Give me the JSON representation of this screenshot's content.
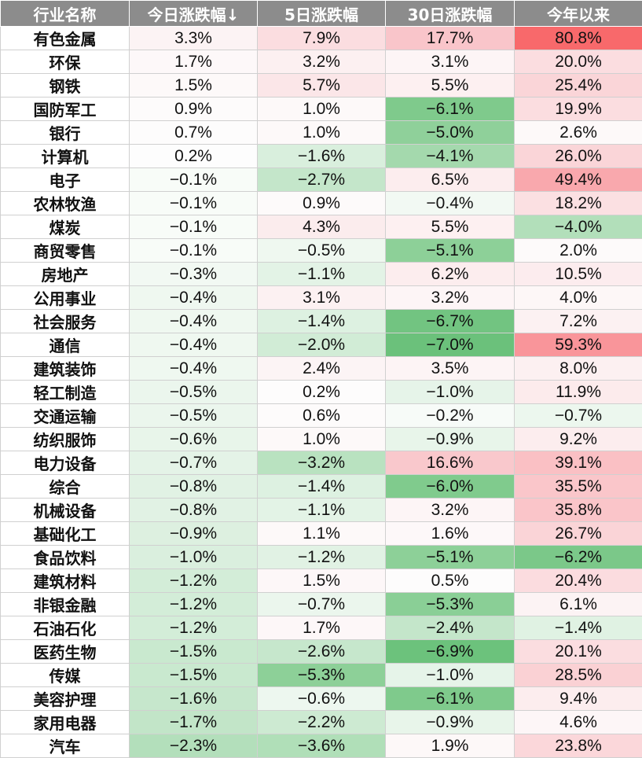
{
  "table": {
    "headers": [
      "行业名称",
      "今日涨跌幅↓",
      "5日涨跌幅",
      "30日涨跌幅",
      "今年以来"
    ],
    "rows": [
      {
        "name": "有色金属",
        "cells": [
          {
            "v": "3.3%",
            "bg": "#fcf3f4"
          },
          {
            "v": "7.9%",
            "bg": "#fbdde0"
          },
          {
            "v": "17.7%",
            "bg": "#f9c5ca"
          },
          {
            "v": "80.8%",
            "bg": "#f8696b"
          }
        ]
      },
      {
        "name": "环保",
        "cells": [
          {
            "v": "1.7%",
            "bg": "#fdf8f9"
          },
          {
            "v": "3.2%",
            "bg": "#fcf0f1"
          },
          {
            "v": "3.1%",
            "bg": "#fdf5f6"
          },
          {
            "v": "20.0%",
            "bg": "#fbdde0"
          }
        ]
      },
      {
        "name": "钢铁",
        "cells": [
          {
            "v": "1.5%",
            "bg": "#fdf9f9"
          },
          {
            "v": "5.7%",
            "bg": "#fbe6e8"
          },
          {
            "v": "5.5%",
            "bg": "#fdf0f1"
          },
          {
            "v": "25.4%",
            "bg": "#fad5d8"
          }
        ]
      },
      {
        "name": "国防军工",
        "cells": [
          {
            "v": "0.9%",
            "bg": "#fdfbfb"
          },
          {
            "v": "1.0%",
            "bg": "#fdf9f9"
          },
          {
            "v": "−6.1%",
            "bg": "#7fca8c"
          },
          {
            "v": "19.9%",
            "bg": "#fbdde0"
          }
        ]
      },
      {
        "name": "银行",
        "cells": [
          {
            "v": "0.7%",
            "bg": "#fdfcfc"
          },
          {
            "v": "1.0%",
            "bg": "#fdf9f9"
          },
          {
            "v": "−5.0%",
            "bg": "#8fd09a"
          },
          {
            "v": "2.6%",
            "bg": "#fdf9f9"
          }
        ]
      },
      {
        "name": "计算机",
        "cells": [
          {
            "v": "0.2%",
            "bg": "#fdfdfd"
          },
          {
            "v": "−1.6%",
            "bg": "#d9efdd"
          },
          {
            "v": "−4.1%",
            "bg": "#a4d9ad"
          },
          {
            "v": "26.0%",
            "bg": "#fad5d8"
          }
        ]
      },
      {
        "name": "电子",
        "cells": [
          {
            "v": "−0.1%",
            "bg": "#f8fcf8"
          },
          {
            "v": "−2.7%",
            "bg": "#c4e6ca"
          },
          {
            "v": "6.5%",
            "bg": "#fcedee"
          },
          {
            "v": "49.4%",
            "bg": "#f9a8ad"
          }
        ]
      },
      {
        "name": "农林牧渔",
        "cells": [
          {
            "v": "−0.1%",
            "bg": "#f8fcf8"
          },
          {
            "v": "0.9%",
            "bg": "#fdfafa"
          },
          {
            "v": "−0.4%",
            "bg": "#f2f9f3"
          },
          {
            "v": "18.2%",
            "bg": "#fbe0e2"
          }
        ]
      },
      {
        "name": "煤炭",
        "cells": [
          {
            "v": "−0.1%",
            "bg": "#f8fcf8"
          },
          {
            "v": "4.3%",
            "bg": "#fbeced"
          },
          {
            "v": "5.5%",
            "bg": "#fdf0f1"
          },
          {
            "v": "−4.0%",
            "bg": "#b2dfba"
          }
        ]
      },
      {
        "name": "商贸零售",
        "cells": [
          {
            "v": "−0.1%",
            "bg": "#f8fcf8"
          },
          {
            "v": "−0.5%",
            "bg": "#eff8f0"
          },
          {
            "v": "−5.1%",
            "bg": "#8dd098"
          },
          {
            "v": "2.0%",
            "bg": "#fdfafa"
          }
        ]
      },
      {
        "name": "房地产",
        "cells": [
          {
            "v": "−0.3%",
            "bg": "#f2f9f3"
          },
          {
            "v": "−1.1%",
            "bg": "#e3f3e6"
          },
          {
            "v": "6.2%",
            "bg": "#fcedee"
          },
          {
            "v": "10.5%",
            "bg": "#fcecee"
          }
        ]
      },
      {
        "name": "公用事业",
        "cells": [
          {
            "v": "−0.4%",
            "bg": "#eff8f0"
          },
          {
            "v": "3.1%",
            "bg": "#fcf1f2"
          },
          {
            "v": "3.2%",
            "bg": "#fdf5f6"
          },
          {
            "v": "4.0%",
            "bg": "#fdf7f7"
          }
        ]
      },
      {
        "name": "社会服务",
        "cells": [
          {
            "v": "−0.4%",
            "bg": "#eff8f0"
          },
          {
            "v": "−1.4%",
            "bg": "#ddf1e1"
          },
          {
            "v": "−6.7%",
            "bg": "#72c481"
          },
          {
            "v": "7.2%",
            "bg": "#fcf1f2"
          }
        ]
      },
      {
        "name": "通信",
        "cells": [
          {
            "v": "−0.4%",
            "bg": "#eff8f0"
          },
          {
            "v": "−2.0%",
            "bg": "#d1ecd6"
          },
          {
            "v": "−7.0%",
            "bg": "#6bc17b"
          },
          {
            "v": "59.3%",
            "bg": "#f9959a"
          }
        ]
      },
      {
        "name": "建筑装饰",
        "cells": [
          {
            "v": "−0.4%",
            "bg": "#eff8f0"
          },
          {
            "v": "2.4%",
            "bg": "#fcf4f5"
          },
          {
            "v": "3.5%",
            "bg": "#fdf4f5"
          },
          {
            "v": "8.0%",
            "bg": "#fcf0f1"
          }
        ]
      },
      {
        "name": "轻工制造",
        "cells": [
          {
            "v": "−0.5%",
            "bg": "#ebf6ed"
          },
          {
            "v": "0.2%",
            "bg": "#fdfcfc"
          },
          {
            "v": "−1.0%",
            "bg": "#e6f4e9"
          },
          {
            "v": "11.9%",
            "bg": "#fcebec"
          }
        ]
      },
      {
        "name": "交通运输",
        "cells": [
          {
            "v": "−0.5%",
            "bg": "#ebf6ed"
          },
          {
            "v": "0.6%",
            "bg": "#fdfbfb"
          },
          {
            "v": "−0.2%",
            "bg": "#f7fbf8"
          },
          {
            "v": "−0.7%",
            "bg": "#ecf7ee"
          }
        ]
      },
      {
        "name": "纺织服饰",
        "cells": [
          {
            "v": "−0.6%",
            "bg": "#e8f5ea"
          },
          {
            "v": "1.0%",
            "bg": "#fdf9f9"
          },
          {
            "v": "−0.9%",
            "bg": "#e8f5ea"
          },
          {
            "v": "9.2%",
            "bg": "#fcedee"
          }
        ]
      },
      {
        "name": "电力设备",
        "cells": [
          {
            "v": "−0.7%",
            "bg": "#e4f3e7"
          },
          {
            "v": "−3.2%",
            "bg": "#b9e2c0"
          },
          {
            "v": "16.6%",
            "bg": "#f9c8cc"
          },
          {
            "v": "39.1%",
            "bg": "#fac0c4"
          }
        ]
      },
      {
        "name": "综合",
        "cells": [
          {
            "v": "−0.8%",
            "bg": "#e1f2e4"
          },
          {
            "v": "−1.4%",
            "bg": "#ddf1e1"
          },
          {
            "v": "−6.0%",
            "bg": "#80cb8d"
          },
          {
            "v": "35.5%",
            "bg": "#fac6ca"
          }
        ]
      },
      {
        "name": "机械设备",
        "cells": [
          {
            "v": "−0.8%",
            "bg": "#e1f2e4"
          },
          {
            "v": "−1.1%",
            "bg": "#e3f3e6"
          },
          {
            "v": "3.2%",
            "bg": "#fdf5f6"
          },
          {
            "v": "35.8%",
            "bg": "#fac5c9"
          }
        ]
      },
      {
        "name": "基础化工",
        "cells": [
          {
            "v": "−0.9%",
            "bg": "#ddf0e0"
          },
          {
            "v": "1.1%",
            "bg": "#fdf9f9"
          },
          {
            "v": "1.6%",
            "bg": "#fdf8f9"
          },
          {
            "v": "26.7%",
            "bg": "#fad4d7"
          }
        ]
      },
      {
        "name": "食品饮料",
        "cells": [
          {
            "v": "−1.0%",
            "bg": "#daefde"
          },
          {
            "v": "−1.2%",
            "bg": "#e1f2e4"
          },
          {
            "v": "−5.1%",
            "bg": "#8dd098"
          },
          {
            "v": "−6.2%",
            "bg": "#7bc889"
          }
        ]
      },
      {
        "name": "建筑材料",
        "cells": [
          {
            "v": "−1.2%",
            "bg": "#d3edd8"
          },
          {
            "v": "1.5%",
            "bg": "#fdf7f8"
          },
          {
            "v": "0.5%",
            "bg": "#fdfcfc"
          },
          {
            "v": "20.4%",
            "bg": "#fbdcdf"
          }
        ]
      },
      {
        "name": "非银金融",
        "cells": [
          {
            "v": "−1.2%",
            "bg": "#d3edd8"
          },
          {
            "v": "−0.7%",
            "bg": "#ebf6ed"
          },
          {
            "v": "−5.3%",
            "bg": "#8acf96"
          },
          {
            "v": "6.1%",
            "bg": "#fcf3f4"
          }
        ]
      },
      {
        "name": "石油石化",
        "cells": [
          {
            "v": "−1.2%",
            "bg": "#d3edd8"
          },
          {
            "v": "1.7%",
            "bg": "#fdf7f8"
          },
          {
            "v": "−2.4%",
            "bg": "#c4e6ca"
          },
          {
            "v": "−1.4%",
            "bg": "#e0f2e3"
          }
        ]
      },
      {
        "name": "医药生物",
        "cells": [
          {
            "v": "−1.5%",
            "bg": "#c9e9cf"
          },
          {
            "v": "−2.6%",
            "bg": "#c6e7cc"
          },
          {
            "v": "−6.9%",
            "bg": "#6cc27c"
          },
          {
            "v": "20.1%",
            "bg": "#fbdde0"
          }
        ]
      },
      {
        "name": "传媒",
        "cells": [
          {
            "v": "−1.5%",
            "bg": "#c9e9cf"
          },
          {
            "v": "−5.3%",
            "bg": "#8dd098"
          },
          {
            "v": "−1.0%",
            "bg": "#e6f4e9"
          },
          {
            "v": "28.5%",
            "bg": "#fad1d4"
          }
        ]
      },
      {
        "name": "美容护理",
        "cells": [
          {
            "v": "−1.6%",
            "bg": "#c6e7cc"
          },
          {
            "v": "−0.6%",
            "bg": "#edf7ef"
          },
          {
            "v": "−6.1%",
            "bg": "#7fca8c"
          },
          {
            "v": "9.4%",
            "bg": "#fcedee"
          }
        ]
      },
      {
        "name": "家用电器",
        "cells": [
          {
            "v": "−1.7%",
            "bg": "#c2e5c8"
          },
          {
            "v": "−2.2%",
            "bg": "#cdeaD2"
          },
          {
            "v": "−0.9%",
            "bg": "#e8f5ea"
          },
          {
            "v": "4.6%",
            "bg": "#fdf6f7"
          }
        ]
      },
      {
        "name": "汽车",
        "cells": [
          {
            "v": "−2.3%",
            "bg": "#b3dfbb"
          },
          {
            "v": "−3.6%",
            "bg": "#b0dfb8"
          },
          {
            "v": "1.9%",
            "bg": "#fdf8f8"
          },
          {
            "v": "23.8%",
            "bg": "#fbd7da"
          }
        ]
      }
    ]
  }
}
